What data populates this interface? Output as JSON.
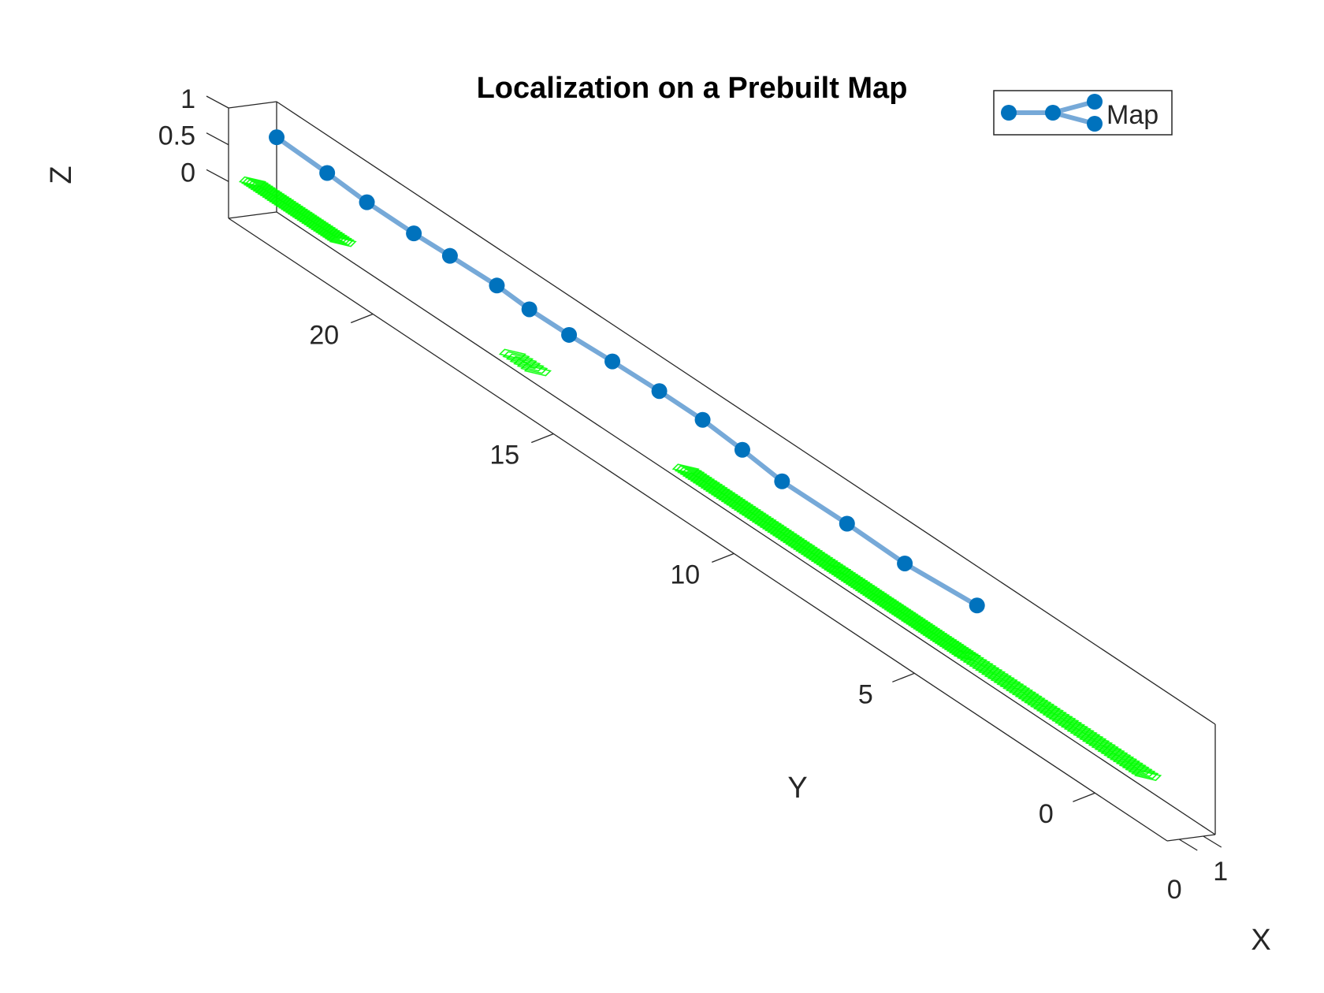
{
  "chart_data": {
    "type": "scatter",
    "subtype": "3d-trajectory",
    "title": "Localization on a Prebuilt Map",
    "xlabel": "X",
    "ylabel": "Y",
    "zlabel": "Z",
    "xlim": [
      -0.5,
      1.5
    ],
    "ylim": [
      -2,
      24
    ],
    "zlim": [
      -0.5,
      1
    ],
    "x_ticks": [
      0,
      1
    ],
    "x_tick_labels": [
      "0",
      "1"
    ],
    "y_ticks": [
      0,
      5,
      10,
      15,
      20
    ],
    "y_tick_labels": [
      "0",
      "5",
      "10",
      "15",
      "20"
    ],
    "z_ticks": [
      0,
      0.5,
      1
    ],
    "z_tick_labels": [
      "0",
      "0.5",
      "1"
    ],
    "legend": {
      "position": "top-right",
      "entries": [
        "Map"
      ]
    },
    "series": [
      {
        "name": "Map",
        "marker": "filled-circle",
        "color": "#0072BD",
        "line_color": "#76A9D8",
        "points": [
          {
            "y": 4.0,
            "z": 0.7
          },
          {
            "y": 6.0,
            "z": 0.62
          },
          {
            "y": 7.6,
            "z": 0.64
          },
          {
            "y": 9.4,
            "z": 0.63
          },
          {
            "y": 10.5,
            "z": 0.7
          },
          {
            "y": 11.6,
            "z": 0.75
          },
          {
            "y": 12.8,
            "z": 0.75
          },
          {
            "y": 14.1,
            "z": 0.73
          },
          {
            "y": 15.3,
            "z": 0.7
          },
          {
            "y": 16.4,
            "z": 0.69
          },
          {
            "y": 17.3,
            "z": 0.72
          },
          {
            "y": 18.6,
            "z": 0.7
          },
          {
            "y": 19.6,
            "z": 0.68
          },
          {
            "y": 20.9,
            "z": 0.68
          },
          {
            "y": 22.0,
            "z": 0.72
          },
          {
            "y": 23.4,
            "z": 0.75
          }
        ]
      },
      {
        "name": "",
        "marker": "camera-pose",
        "color": "#00FF00",
        "segments": [
          {
            "y_start": -0.8,
            "y_end": 4.2,
            "z": -0.05,
            "points": 60
          },
          {
            "y_start": 4.2,
            "y_end": 7.8,
            "z": -0.05,
            "points": 55
          },
          {
            "y_start": 7.8,
            "y_end": 12.0,
            "z": -0.05,
            "points": 60
          },
          {
            "y_start": 16.1,
            "y_end": 16.8,
            "z": -0.05,
            "points": 8
          },
          {
            "y_start": 21.5,
            "y_end": 24.0,
            "z": -0.05,
            "points": 40
          }
        ]
      }
    ]
  }
}
